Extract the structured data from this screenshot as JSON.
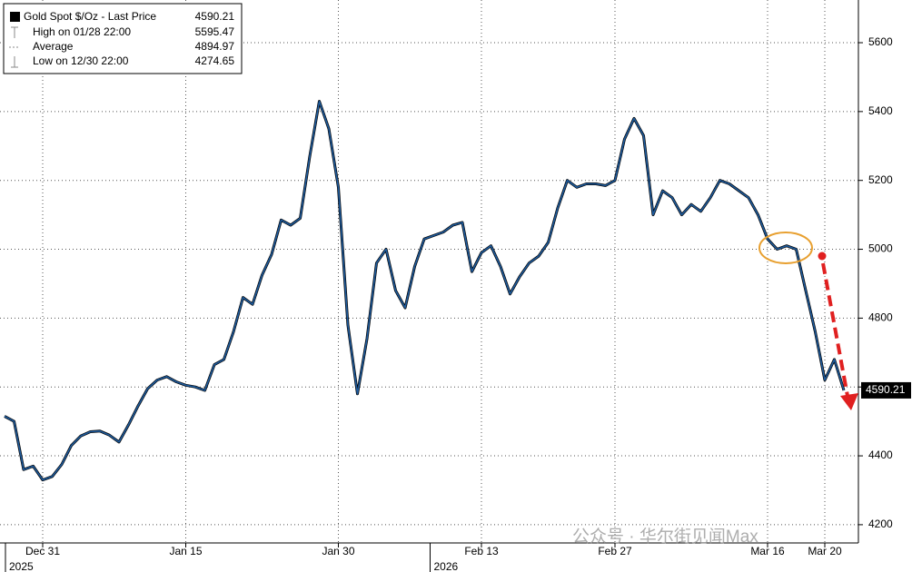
{
  "chart_data": {
    "type": "line",
    "legend": [
      {
        "label": "Gold Spot $/Oz - Last Price",
        "value": 4590.21
      },
      {
        "label": "High on 01/28 22:00",
        "value": 5595.47
      },
      {
        "label": "Average",
        "value": 4894.97
      },
      {
        "label": "Low on 12/30 22:00",
        "value": 4274.65
      }
    ],
    "categories": [
      null,
      null,
      null,
      null,
      "Dec 31",
      null,
      null,
      null,
      null,
      null,
      null,
      null,
      null,
      null,
      null,
      null,
      null,
      null,
      null,
      "Jan 15",
      null,
      null,
      null,
      null,
      null,
      null,
      null,
      null,
      null,
      null,
      null,
      null,
      null,
      null,
      null,
      "Jan 30",
      null,
      null,
      null,
      null,
      null,
      null,
      null,
      null,
      null,
      null,
      null,
      null,
      null,
      null,
      "Feb 13",
      null,
      null,
      null,
      null,
      null,
      null,
      null,
      null,
      null,
      null,
      null,
      null,
      null,
      "Feb 27",
      null,
      null,
      null,
      null,
      null,
      null,
      null,
      null,
      null,
      null,
      null,
      null,
      null,
      null,
      null,
      "Mar 16",
      null,
      null,
      null,
      null,
      null,
      "Mar 20",
      null,
      null
    ],
    "year_labels": [
      "2025",
      "2026"
    ],
    "series": [
      {
        "name": "Gold Spot $/Oz - Last Price",
        "color": "#1f5c9e",
        "values": [
          4515,
          4500,
          4360,
          4370,
          4330,
          4340,
          4375,
          4430,
          4458,
          4470,
          4472,
          4460,
          4440,
          4490,
          4545,
          4595,
          4620,
          4630,
          4615,
          4605,
          4600,
          4590,
          4665,
          4680,
          4760,
          4860,
          4840,
          4925,
          4985,
          5085,
          5070,
          5090,
          5270,
          5430,
          5350,
          5180,
          4780,
          4580,
          4740,
          4960,
          5000,
          4880,
          4830,
          4950,
          5030,
          5040,
          5050,
          5070,
          5078,
          4935,
          4990,
          5010,
          4950,
          4870,
          4920,
          4960,
          4980,
          5020,
          5120,
          5200,
          5180,
          5190,
          5190,
          5185,
          5200,
          5320,
          5380,
          5330,
          5100,
          5170,
          5150,
          5100,
          5130,
          5110,
          5150,
          5200,
          5190,
          5170,
          5150,
          5100,
          5030,
          5000,
          5010,
          5000,
          4880,
          4760,
          4620,
          4680,
          4590.21
        ]
      }
    ],
    "ylim": [
      4147,
      5724
    ],
    "yticks": [
      4200,
      4400,
      4600,
      4800,
      5000,
      5200,
      5400,
      5600
    ],
    "grid": true,
    "watermark": "公众号 · 华尔街见闻Max"
  }
}
